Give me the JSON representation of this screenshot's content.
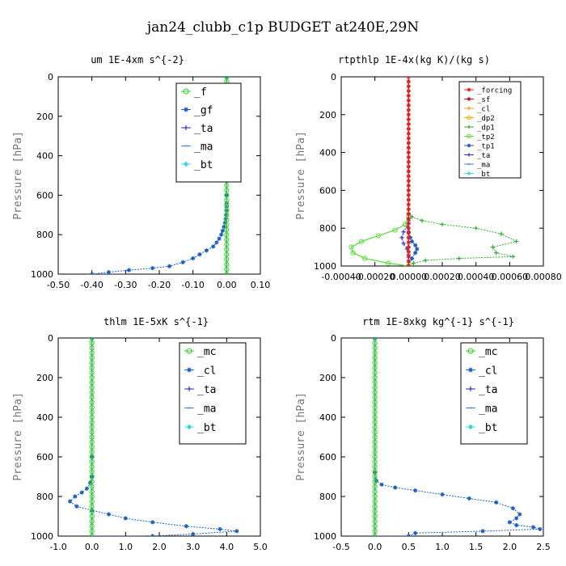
{
  "figure_title": "jan24_clubb_c1p  BUDGET at240E,29N",
  "chart_data": [
    {
      "type": "line",
      "title": "um  1E-4xm s^{-2}",
      "ylabel": "Pressure [hPa]",
      "xlim": [
        -0.5,
        0.1
      ],
      "ylim": [
        1000,
        0
      ],
      "xticks": [
        "-0.50",
        "-0.40",
        "-0.30",
        "-0.20",
        "-0.10",
        "0.00",
        "0.10"
      ],
      "xtick_values": [
        -0.5,
        -0.4,
        -0.3,
        -0.2,
        -0.1,
        0.0,
        0.1
      ],
      "yticks": [
        "0",
        "200",
        "400",
        "600",
        "800",
        "1000"
      ],
      "ytick_values": [
        0,
        200,
        400,
        600,
        800,
        1000
      ],
      "legend": {
        "placement": "top-right"
      },
      "series": [
        {
          "name": "_f",
          "color": "#33cc33",
          "marker": "circle",
          "dotted": false,
          "x": [
            0,
            0,
            0,
            0,
            0,
            0,
            0,
            0,
            0,
            0,
            0,
            0,
            0,
            0,
            0,
            0,
            0,
            0,
            0,
            0,
            0,
            0,
            0,
            0,
            0,
            0,
            0,
            0,
            0,
            0,
            0,
            0,
            0,
            0,
            0,
            0,
            0,
            0,
            0,
            0,
            0
          ],
          "y": [
            0,
            25,
            50,
            75,
            100,
            125,
            150,
            175,
            200,
            225,
            250,
            275,
            300,
            325,
            350,
            375,
            400,
            425,
            450,
            475,
            500,
            525,
            550,
            575,
            600,
            625,
            650,
            675,
            700,
            725,
            750,
            775,
            800,
            825,
            850,
            875,
            900,
            925,
            950,
            975,
            1000
          ]
        },
        {
          "name": "_gf",
          "color": "#1f5fbf",
          "marker": "star",
          "dotted": true,
          "x": [
            0,
            0,
            0,
            0,
            0,
            0,
            0,
            0,
            0,
            0,
            -0.002,
            -0.003,
            -0.005,
            -0.008,
            -0.012,
            -0.016,
            -0.022,
            -0.03,
            -0.04,
            -0.06,
            -0.08,
            -0.1,
            -0.13,
            -0.17,
            -0.22,
            -0.29,
            -0.35,
            -0.4
          ],
          "y": [
            0,
            100,
            200,
            300,
            400,
            500,
            600,
            640,
            660,
            680,
            700,
            720,
            740,
            760,
            780,
            800,
            820,
            840,
            860,
            880,
            900,
            920,
            940,
            960,
            970,
            980,
            990,
            1000
          ]
        },
        {
          "name": "_ta",
          "color": "#3333cc",
          "marker": "plus",
          "dotted": true,
          "x": [
            -0.4,
            -0.3
          ],
          "y": [
            1000,
            1000
          ]
        },
        {
          "name": "_ma",
          "color": "#4488dd",
          "marker": "dash",
          "dotted": false,
          "x": [
            0,
            0
          ],
          "y": [
            0,
            1000
          ]
        },
        {
          "name": "_bt",
          "color": "#33dddd",
          "marker": "diamond",
          "dotted": false,
          "x": [
            0,
            0
          ],
          "y": [
            0,
            1000
          ]
        }
      ]
    },
    {
      "type": "line",
      "title": "rtpthlp  1E-4x(kg K)/(kg s)",
      "ylabel": "Pressure [hPa]",
      "xlim": [
        -0.0004,
        0.0008
      ],
      "ylim": [
        1000,
        0
      ],
      "xticks": [
        "-0.00040",
        "-0.00020",
        "0.00000",
        "0.00020",
        "0.00040",
        "0.00060",
        "0.00080"
      ],
      "xtick_values": [
        -0.0004,
        -0.0002,
        0.0,
        0.0002,
        0.0004,
        0.0006,
        0.0008
      ],
      "yticks": [
        "0",
        "200",
        "400",
        "600",
        "800",
        "1000"
      ],
      "ytick_values": [
        0,
        200,
        400,
        600,
        800,
        1000
      ],
      "legend": {
        "placement": "top-right"
      },
      "series": [
        {
          "name": "_forcing",
          "color": "#dd2222",
          "marker": "star",
          "dotted": false,
          "x": [
            0,
            0,
            0,
            0,
            0,
            0,
            0,
            0,
            0,
            0,
            0,
            0,
            0,
            0,
            0,
            0,
            0,
            0,
            0,
            0,
            0,
            0,
            0,
            0,
            0,
            0,
            0,
            0,
            0,
            0,
            0,
            0,
            0,
            0,
            0,
            0,
            0,
            0,
            0,
            0,
            0
          ],
          "y": [
            0,
            25,
            50,
            75,
            100,
            125,
            150,
            175,
            200,
            225,
            250,
            275,
            300,
            325,
            350,
            375,
            400,
            425,
            450,
            475,
            500,
            525,
            550,
            575,
            600,
            625,
            650,
            675,
            700,
            725,
            750,
            775,
            800,
            825,
            850,
            875,
            900,
            925,
            950,
            975,
            1000
          ]
        },
        {
          "name": "_sf",
          "color": "#cc1111",
          "marker": "star",
          "dotted": false,
          "x": [
            0,
            0
          ],
          "y": [
            0,
            1000
          ]
        },
        {
          "name": "_cl",
          "color": "#ff9900",
          "marker": "plus",
          "dotted": false,
          "x": [
            0,
            0
          ],
          "y": [
            0,
            1000
          ]
        },
        {
          "name": "_dp2",
          "color": "#ffaa00",
          "marker": "circle",
          "dotted": false,
          "x": [
            0,
            0
          ],
          "y": [
            0,
            1000
          ]
        },
        {
          "name": "_dp1",
          "color": "#33aa33",
          "marker": "plus",
          "dotted": true,
          "x": [
            0,
            0,
            2e-05,
            8e-05,
            0.0002,
            0.0004,
            0.00055,
            0.00064,
            0.0005,
            0.00052,
            0.00062,
            0.0003,
            0.0001,
            3e-05,
            0
          ],
          "y": [
            700,
            720,
            740,
            760,
            780,
            800,
            830,
            870,
            900,
            930,
            950,
            960,
            970,
            985,
            1000
          ]
        },
        {
          "name": "_tp2",
          "color": "#55dd33",
          "marker": "circle",
          "dotted": false,
          "x": [
            0,
            -2e-05,
            -8e-05,
            -0.00018,
            -0.00028,
            -0.00034,
            -0.00033,
            -0.00026,
            -0.00012,
            0
          ],
          "y": [
            740,
            780,
            810,
            840,
            870,
            900,
            930,
            960,
            985,
            1000
          ]
        },
        {
          "name": "_tp1",
          "color": "#1f5fbf",
          "marker": "star",
          "dotted": true,
          "x": [
            0,
            1e-05,
            2e-05,
            4e-05,
            5e-05,
            4e-05,
            2e-05,
            0
          ],
          "y": [
            820,
            850,
            870,
            890,
            910,
            930,
            960,
            1000
          ]
        },
        {
          "name": "_ta",
          "color": "#3333cc",
          "marker": "plus",
          "dotted": true,
          "x": [
            0,
            -1e-05,
            -3e-05,
            -4e-05,
            -3e-05,
            -1e-05,
            0
          ],
          "y": [
            760,
            790,
            820,
            850,
            880,
            910,
            940
          ]
        },
        {
          "name": "_ma",
          "color": "#4488dd",
          "marker": "dash",
          "dotted": false,
          "x": [
            0,
            0
          ],
          "y": [
            0,
            1000
          ]
        },
        {
          "name": "_bt",
          "color": "#33dddd",
          "marker": "diamond",
          "dotted": false,
          "x": [
            0,
            0
          ],
          "y": [
            0,
            1000
          ]
        }
      ]
    },
    {
      "type": "line",
      "title": "thlm  1E-5xK s^{-1}",
      "ylabel": "Pressure [hPa]",
      "xlim": [
        -1.0,
        5.0
      ],
      "ylim": [
        1000,
        0
      ],
      "xticks": [
        "-1.0",
        "0.0",
        "1.0",
        "2.0",
        "3.0",
        "4.0",
        "5.0"
      ],
      "xtick_values": [
        -1,
        0,
        1,
        2,
        3,
        4,
        5
      ],
      "yticks": [
        "0",
        "200",
        "400",
        "600",
        "800",
        "1000"
      ],
      "ytick_values": [
        0,
        200,
        400,
        600,
        800,
        1000
      ],
      "legend": {
        "placement": "top-right"
      },
      "series": [
        {
          "name": "_mc",
          "color": "#33cc33",
          "marker": "circle",
          "dotted": false,
          "x": [
            0,
            0,
            0,
            0,
            0,
            0,
            0,
            0,
            0,
            0,
            0,
            0,
            0,
            0,
            0,
            0,
            0,
            0,
            0,
            0,
            0,
            0,
            0,
            0,
            0,
            0,
            0,
            0,
            0,
            0,
            0,
            0,
            0,
            0,
            0,
            0,
            0,
            0,
            0,
            0,
            0
          ],
          "y": [
            0,
            25,
            50,
            75,
            100,
            125,
            150,
            175,
            200,
            225,
            250,
            275,
            300,
            325,
            350,
            375,
            400,
            425,
            450,
            475,
            500,
            525,
            550,
            575,
            600,
            625,
            650,
            675,
            700,
            725,
            750,
            775,
            800,
            825,
            850,
            875,
            900,
            925,
            950,
            975,
            1000
          ]
        },
        {
          "name": "_cl",
          "color": "#1f5fbf",
          "marker": "star",
          "dotted": true,
          "x": [
            0,
            0,
            0,
            -0.05,
            -0.15,
            -0.3,
            -0.5,
            -0.65,
            -0.45,
            0,
            0.5,
            1,
            1.8,
            2.8,
            3.8,
            4.3,
            3.0,
            1.8
          ],
          "y": [
            0,
            600,
            700,
            730,
            760,
            780,
            800,
            825,
            850,
            870,
            890,
            910,
            930,
            950,
            965,
            975,
            990,
            1000
          ]
        },
        {
          "name": "_ta",
          "color": "#3333cc",
          "marker": "plus",
          "dotted": true,
          "x": [
            0,
            1.6
          ],
          "y": [
            1000,
            1000
          ]
        },
        {
          "name": "_ma",
          "color": "#4488dd",
          "marker": "dash",
          "dotted": false,
          "x": [
            0,
            0
          ],
          "y": [
            0,
            1000
          ]
        },
        {
          "name": "_bt",
          "color": "#33dddd",
          "marker": "diamond",
          "dotted": false,
          "x": [
            0,
            0
          ],
          "y": [
            0,
            1000
          ]
        }
      ]
    },
    {
      "type": "line",
      "title": "rtm  1E-8xkg kg^{-1} s^{-1}",
      "ylabel": "Pressure [hPa]",
      "xlim": [
        -0.5,
        2.5
      ],
      "ylim": [
        1000,
        0
      ],
      "xticks": [
        "-0.5",
        "0.0",
        "0.5",
        "1.0",
        "1.5",
        "2.0",
        "2.5"
      ],
      "xtick_values": [
        -0.5,
        0,
        0.5,
        1,
        1.5,
        2,
        2.5
      ],
      "yticks": [
        "0",
        "200",
        "400",
        "600",
        "800",
        "1000"
      ],
      "ytick_values": [
        0,
        200,
        400,
        600,
        800,
        1000
      ],
      "legend": {
        "placement": "top-right"
      },
      "series": [
        {
          "name": "_mc",
          "color": "#33cc33",
          "marker": "circle",
          "dotted": false,
          "x": [
            0,
            0,
            0,
            0,
            0,
            0,
            0,
            0,
            0,
            0,
            0,
            0,
            0,
            0,
            0,
            0,
            0,
            0,
            0,
            0,
            0,
            0,
            0,
            0,
            0,
            0,
            0,
            0,
            0,
            0,
            0,
            0,
            0,
            0,
            0,
            0,
            0,
            0,
            0,
            0,
            0
          ],
          "y": [
            0,
            25,
            50,
            75,
            100,
            125,
            150,
            175,
            200,
            225,
            250,
            275,
            300,
            325,
            350,
            375,
            400,
            425,
            450,
            475,
            500,
            525,
            550,
            575,
            600,
            625,
            650,
            675,
            700,
            725,
            750,
            775,
            800,
            825,
            850,
            875,
            900,
            925,
            950,
            975,
            1000
          ]
        },
        {
          "name": "_cl",
          "color": "#1f5fbf",
          "marker": "star",
          "dotted": true,
          "x": [
            0,
            0,
            0.02,
            0.1,
            0.3,
            0.6,
            1.0,
            1.4,
            1.8,
            2.05,
            2.15,
            2.1,
            2.0,
            2.1,
            2.35,
            2.45,
            1.6,
            0.6,
            0.5
          ],
          "y": [
            0,
            680,
            720,
            740,
            755,
            770,
            790,
            810,
            830,
            860,
            890,
            910,
            930,
            945,
            955,
            965,
            975,
            985,
            1000
          ]
        },
        {
          "name": "_ta",
          "color": "#3333cc",
          "marker": "plus",
          "dotted": true,
          "x": [
            0,
            0.5
          ],
          "y": [
            1000,
            1000
          ]
        },
        {
          "name": "_ma",
          "color": "#4488dd",
          "marker": "dash",
          "dotted": false,
          "x": [
            0,
            0
          ],
          "y": [
            0,
            1000
          ]
        },
        {
          "name": "_bt",
          "color": "#33dddd",
          "marker": "diamond",
          "dotted": false,
          "x": [
            0,
            0
          ],
          "y": [
            0,
            1000
          ]
        }
      ]
    }
  ]
}
